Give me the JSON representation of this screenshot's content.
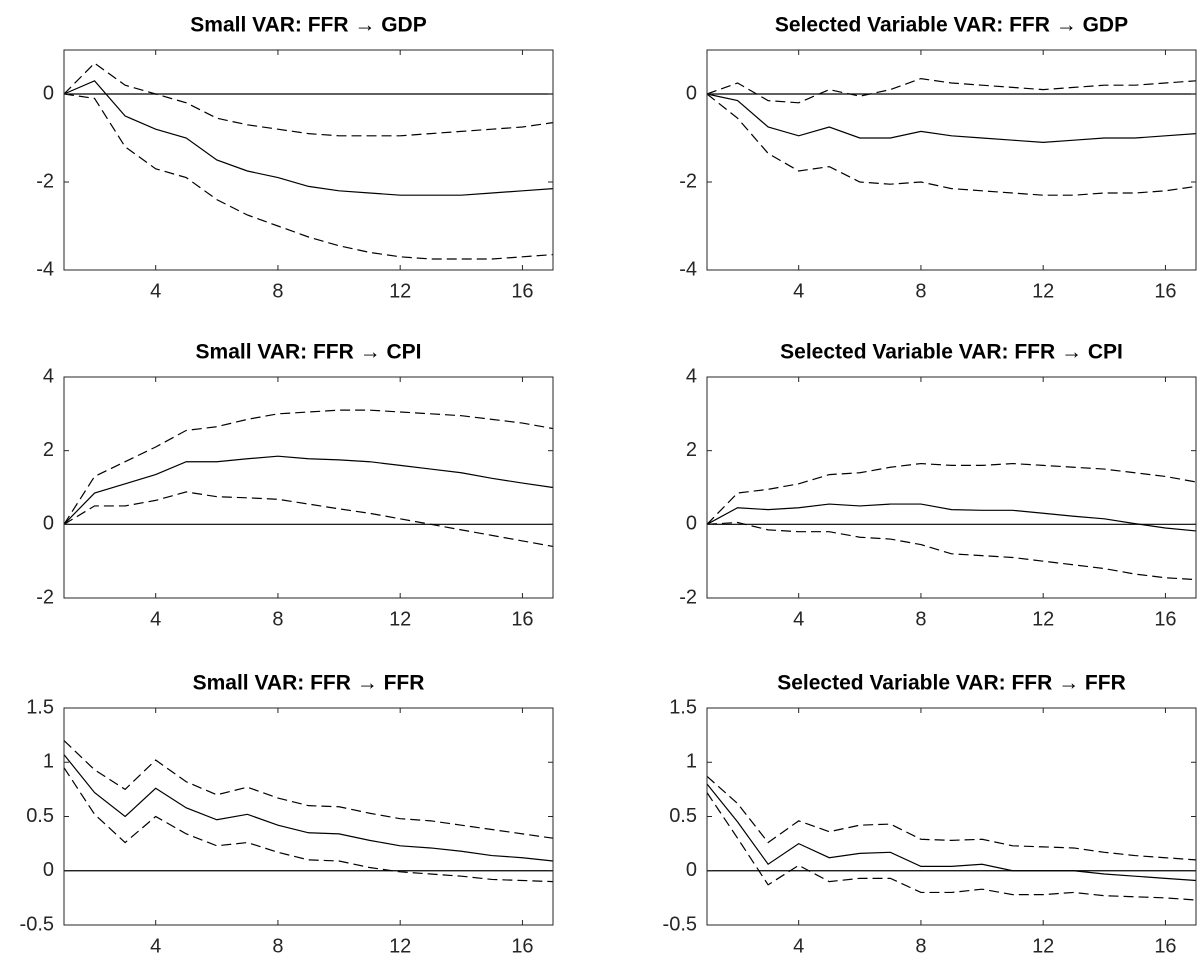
{
  "chart_data": [
    {
      "type": "line",
      "title": "Small VAR: FFR → GDP",
      "x": [
        1,
        2,
        3,
        4,
        5,
        6,
        7,
        8,
        9,
        10,
        11,
        12,
        13,
        14,
        15,
        16,
        17
      ],
      "xlim": [
        1,
        17
      ],
      "xticks": [
        4,
        8,
        12,
        16
      ],
      "ylim": [
        -4,
        1
      ],
      "yticks": [
        -4,
        -2,
        0
      ],
      "zero_line": true,
      "series": [
        {
          "color": "#000000",
          "style": "solid",
          "values": [
            0,
            0.3,
            -0.5,
            -0.8,
            -1.0,
            -1.5,
            -1.75,
            -1.9,
            -2.1,
            -2.2,
            -2.25,
            -2.3,
            -2.3,
            -2.3,
            -2.25,
            -2.2,
            -2.15
          ]
        },
        {
          "color": "#000000",
          "style": "dashed",
          "values": [
            0,
            0.7,
            0.2,
            0.0,
            -0.2,
            -0.55,
            -0.7,
            -0.8,
            -0.9,
            -0.95,
            -0.95,
            -0.95,
            -0.9,
            -0.85,
            -0.8,
            -0.75,
            -0.65
          ]
        },
        {
          "color": "#000000",
          "style": "dashed",
          "values": [
            0,
            -0.1,
            -1.2,
            -1.7,
            -1.9,
            -2.4,
            -2.75,
            -3.0,
            -3.25,
            -3.45,
            -3.6,
            -3.7,
            -3.75,
            -3.75,
            -3.75,
            -3.7,
            -3.65
          ]
        }
      ]
    },
    {
      "type": "line",
      "title": "Selected Variable VAR: FFR → GDP",
      "x": [
        1,
        2,
        3,
        4,
        5,
        6,
        7,
        8,
        9,
        10,
        11,
        12,
        13,
        14,
        15,
        16,
        17
      ],
      "xlim": [
        1,
        17
      ],
      "xticks": [
        4,
        8,
        12,
        16
      ],
      "ylim": [
        -4,
        1
      ],
      "yticks": [
        -4,
        -2,
        0
      ],
      "zero_line": true,
      "series": [
        {
          "color": "#000000",
          "style": "solid",
          "values": [
            0,
            -0.15,
            -0.75,
            -0.95,
            -0.75,
            -1.0,
            -1.0,
            -0.85,
            -0.95,
            -1.0,
            -1.05,
            -1.1,
            -1.05,
            -1.0,
            -1.0,
            -0.95,
            -0.9
          ]
        },
        {
          "color": "#000000",
          "style": "dashed",
          "values": [
            0,
            0.25,
            -0.15,
            -0.2,
            0.1,
            -0.05,
            0.1,
            0.35,
            0.25,
            0.2,
            0.15,
            0.1,
            0.15,
            0.2,
            0.2,
            0.25,
            0.3
          ]
        },
        {
          "color": "#000000",
          "style": "dashed",
          "values": [
            0,
            -0.55,
            -1.35,
            -1.75,
            -1.65,
            -2.0,
            -2.05,
            -2.0,
            -2.15,
            -2.2,
            -2.25,
            -2.3,
            -2.3,
            -2.25,
            -2.25,
            -2.2,
            -2.1
          ]
        }
      ]
    },
    {
      "type": "line",
      "title": "Small VAR: FFR → CPI",
      "x": [
        1,
        2,
        3,
        4,
        5,
        6,
        7,
        8,
        9,
        10,
        11,
        12,
        13,
        14,
        15,
        16,
        17
      ],
      "xlim": [
        1,
        17
      ],
      "xticks": [
        4,
        8,
        12,
        16
      ],
      "ylim": [
        -2,
        4
      ],
      "yticks": [
        -2,
        0,
        2,
        4
      ],
      "zero_line": true,
      "series": [
        {
          "color": "#000000",
          "style": "solid",
          "values": [
            0,
            0.85,
            1.1,
            1.35,
            1.7,
            1.7,
            1.78,
            1.85,
            1.78,
            1.75,
            1.7,
            1.6,
            1.5,
            1.4,
            1.25,
            1.12,
            1.0
          ]
        },
        {
          "color": "#000000",
          "style": "dashed",
          "values": [
            0,
            1.3,
            1.7,
            2.1,
            2.55,
            2.65,
            2.85,
            3.0,
            3.05,
            3.1,
            3.1,
            3.05,
            3.0,
            2.95,
            2.85,
            2.75,
            2.6
          ]
        },
        {
          "color": "#000000",
          "style": "dashed",
          "values": [
            0,
            0.5,
            0.5,
            0.65,
            0.88,
            0.75,
            0.72,
            0.68,
            0.55,
            0.42,
            0.3,
            0.15,
            0.0,
            -0.15,
            -0.3,
            -0.45,
            -0.6
          ]
        }
      ]
    },
    {
      "type": "line",
      "title": "Selected Variable VAR: FFR → CPI",
      "x": [
        1,
        2,
        3,
        4,
        5,
        6,
        7,
        8,
        9,
        10,
        11,
        12,
        13,
        14,
        15,
        16,
        17
      ],
      "xlim": [
        1,
        17
      ],
      "xticks": [
        4,
        8,
        12,
        16
      ],
      "ylim": [
        -2,
        4
      ],
      "yticks": [
        -2,
        0,
        2,
        4
      ],
      "zero_line": true,
      "series": [
        {
          "color": "#000000",
          "style": "solid",
          "values": [
            0,
            0.45,
            0.4,
            0.45,
            0.55,
            0.5,
            0.55,
            0.55,
            0.4,
            0.38,
            0.38,
            0.3,
            0.22,
            0.15,
            0.02,
            -0.1,
            -0.18
          ]
        },
        {
          "color": "#000000",
          "style": "dashed",
          "values": [
            0,
            0.85,
            0.95,
            1.1,
            1.35,
            1.4,
            1.55,
            1.65,
            1.6,
            1.6,
            1.65,
            1.6,
            1.55,
            1.5,
            1.4,
            1.3,
            1.15
          ]
        },
        {
          "color": "#000000",
          "style": "dashed",
          "values": [
            0,
            0.05,
            -0.15,
            -0.2,
            -0.2,
            -0.35,
            -0.4,
            -0.55,
            -0.8,
            -0.85,
            -0.9,
            -1.0,
            -1.1,
            -1.2,
            -1.35,
            -1.45,
            -1.5
          ]
        }
      ]
    },
    {
      "type": "line",
      "title": "Small VAR: FFR → FFR",
      "x": [
        1,
        2,
        3,
        4,
        5,
        6,
        7,
        8,
        9,
        10,
        11,
        12,
        13,
        14,
        15,
        16,
        17
      ],
      "xlim": [
        1,
        17
      ],
      "xticks": [
        4,
        8,
        12,
        16
      ],
      "ylim": [
        -0.5,
        1.5
      ],
      "yticks": [
        -0.5,
        0,
        0.5,
        1,
        1.5
      ],
      "zero_line": true,
      "series": [
        {
          "color": "#000000",
          "style": "solid",
          "values": [
            1.07,
            0.72,
            0.5,
            0.76,
            0.58,
            0.47,
            0.52,
            0.42,
            0.35,
            0.34,
            0.28,
            0.23,
            0.21,
            0.18,
            0.14,
            0.12,
            0.09
          ]
        },
        {
          "color": "#000000",
          "style": "dashed",
          "values": [
            1.2,
            0.93,
            0.75,
            1.02,
            0.82,
            0.7,
            0.77,
            0.67,
            0.6,
            0.59,
            0.53,
            0.48,
            0.46,
            0.42,
            0.38,
            0.34,
            0.3
          ]
        },
        {
          "color": "#000000",
          "style": "dashed",
          "values": [
            0.95,
            0.52,
            0.26,
            0.5,
            0.34,
            0.23,
            0.26,
            0.17,
            0.1,
            0.09,
            0.03,
            -0.01,
            -0.03,
            -0.05,
            -0.08,
            -0.09,
            -0.1
          ]
        }
      ]
    },
    {
      "type": "line",
      "title": "Selected Variable VAR: FFR → FFR",
      "x": [
        1,
        2,
        3,
        4,
        5,
        6,
        7,
        8,
        9,
        10,
        11,
        12,
        13,
        14,
        15,
        16,
        17
      ],
      "xlim": [
        1,
        17
      ],
      "xticks": [
        4,
        8,
        12,
        16
      ],
      "ylim": [
        -0.5,
        1.5
      ],
      "yticks": [
        -0.5,
        0,
        0.5,
        1,
        1.5
      ],
      "zero_line": true,
      "series": [
        {
          "color": "#000000",
          "style": "solid",
          "values": [
            0.8,
            0.45,
            0.06,
            0.25,
            0.12,
            0.16,
            0.17,
            0.04,
            0.04,
            0.06,
            0.0,
            0.0,
            0.0,
            -0.03,
            -0.05,
            -0.07,
            -0.09
          ]
        },
        {
          "color": "#000000",
          "style": "dashed",
          "values": [
            0.87,
            0.62,
            0.26,
            0.46,
            0.36,
            0.42,
            0.43,
            0.29,
            0.28,
            0.29,
            0.23,
            0.22,
            0.21,
            0.17,
            0.14,
            0.12,
            0.1
          ]
        },
        {
          "color": "#000000",
          "style": "dashed",
          "values": [
            0.72,
            0.3,
            -0.13,
            0.05,
            -0.1,
            -0.07,
            -0.07,
            -0.2,
            -0.2,
            -0.17,
            -0.22,
            -0.22,
            -0.2,
            -0.23,
            -0.24,
            -0.25,
            -0.27
          ]
        }
      ]
    }
  ]
}
